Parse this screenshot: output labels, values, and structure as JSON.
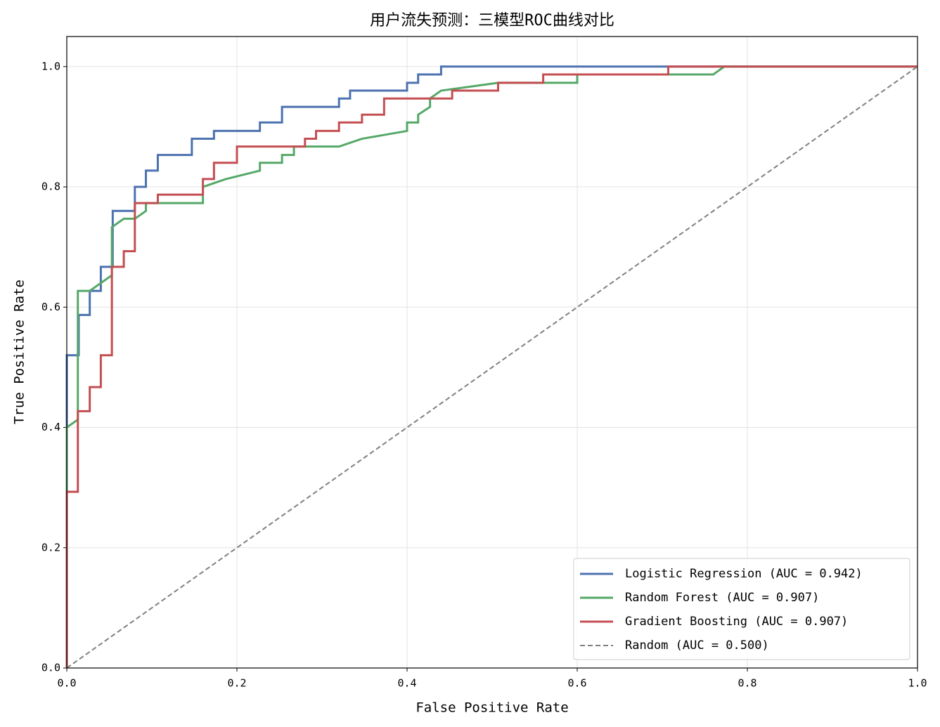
{
  "chart_data": {
    "type": "line",
    "title": "用户流失预测：三模型ROC曲线对比",
    "xlabel": "False Positive Rate",
    "ylabel": "True Positive Rate",
    "xlim": [
      0,
      1
    ],
    "ylim": [
      0,
      1.05
    ],
    "xticks": [
      {
        "value": 0,
        "label": "0.0"
      },
      0.2,
      0.4,
      0.6,
      0.8,
      {
        "value": 1,
        "label": "1.0"
      }
    ],
    "yticks": [
      {
        "value": 0,
        "label": "0.0"
      },
      0.2,
      0.4,
      0.6,
      0.8,
      {
        "value": 1,
        "label": "1.0"
      }
    ],
    "grid": true,
    "legend": "lower right",
    "series": [
      {
        "name": "Logistic Regression (AUC = 0.942)",
        "color": "#4c72b0",
        "dashed": false,
        "x": [
          0,
          0,
          0.014,
          0.014,
          0.027,
          0.027,
          0.04,
          0.04,
          0.054,
          0.054,
          0.08,
          0.08,
          0.093,
          0.093,
          0.107,
          0.107,
          0.147,
          0.147,
          0.173,
          0.173,
          0.227,
          0.227,
          0.253,
          0.253,
          0.32,
          0.32,
          0.333,
          0.333,
          0.4,
          0.4,
          0.413,
          0.413,
          0.44,
          0.44,
          1
        ],
        "values": [
          0,
          0.52,
          0.52,
          0.587,
          0.587,
          0.627,
          0.627,
          0.667,
          0.667,
          0.76,
          0.76,
          0.8,
          0.8,
          0.827,
          0.827,
          0.853,
          0.853,
          0.88,
          0.88,
          0.893,
          0.893,
          0.907,
          0.907,
          0.933,
          0.933,
          0.947,
          0.947,
          0.96,
          0.96,
          0.973,
          0.973,
          0.987,
          0.987,
          1,
          1
        ]
      },
      {
        "name": "Random Forest (AUC = 0.907)",
        "color": "#55a868",
        "dashed": false,
        "x": [
          0,
          0,
          0.013,
          0.013,
          0.027,
          0.053,
          0.053,
          0.067,
          0.08,
          0.093,
          0.093,
          0.16,
          0.16,
          0.187,
          0.227,
          0.227,
          0.253,
          0.253,
          0.267,
          0.267,
          0.32,
          0.347,
          0.4,
          0.4,
          0.413,
          0.413,
          0.427,
          0.427,
          0.44,
          0.507,
          0.6,
          0.6,
          0.76,
          0.773,
          1
        ],
        "values": [
          0,
          0.4,
          0.413,
          0.627,
          0.627,
          0.653,
          0.733,
          0.747,
          0.747,
          0.76,
          0.773,
          0.773,
          0.8,
          0.813,
          0.827,
          0.84,
          0.84,
          0.853,
          0.853,
          0.867,
          0.867,
          0.88,
          0.893,
          0.907,
          0.907,
          0.92,
          0.933,
          0.947,
          0.96,
          0.973,
          0.973,
          0.987,
          0.987,
          1,
          1
        ]
      },
      {
        "name": "Gradient Boosting (AUC = 0.907)",
        "color": "#c44e52",
        "dashed": false,
        "x": [
          0,
          0,
          0.013,
          0.013,
          0.027,
          0.027,
          0.04,
          0.04,
          0.053,
          0.053,
          0.067,
          0.067,
          0.08,
          0.08,
          0.107,
          0.107,
          0.16,
          0.16,
          0.173,
          0.173,
          0.2,
          0.2,
          0.28,
          0.28,
          0.293,
          0.293,
          0.32,
          0.32,
          0.347,
          0.347,
          0.373,
          0.373,
          0.453,
          0.453,
          0.507,
          0.507,
          0.56,
          0.56,
          0.707,
          0.707,
          1
        ],
        "values": [
          0,
          0.293,
          0.293,
          0.427,
          0.427,
          0.467,
          0.467,
          0.52,
          0.52,
          0.667,
          0.667,
          0.693,
          0.693,
          0.773,
          0.773,
          0.787,
          0.787,
          0.813,
          0.813,
          0.84,
          0.84,
          0.867,
          0.867,
          0.88,
          0.88,
          0.893,
          0.893,
          0.907,
          0.907,
          0.92,
          0.92,
          0.947,
          0.947,
          0.96,
          0.96,
          0.973,
          0.973,
          0.987,
          0.987,
          1,
          1
        ]
      },
      {
        "name": "Random (AUC = 0.500)",
        "color": "#808080",
        "dashed": true,
        "x": [
          0,
          1
        ],
        "values": [
          0,
          1
        ]
      }
    ]
  }
}
